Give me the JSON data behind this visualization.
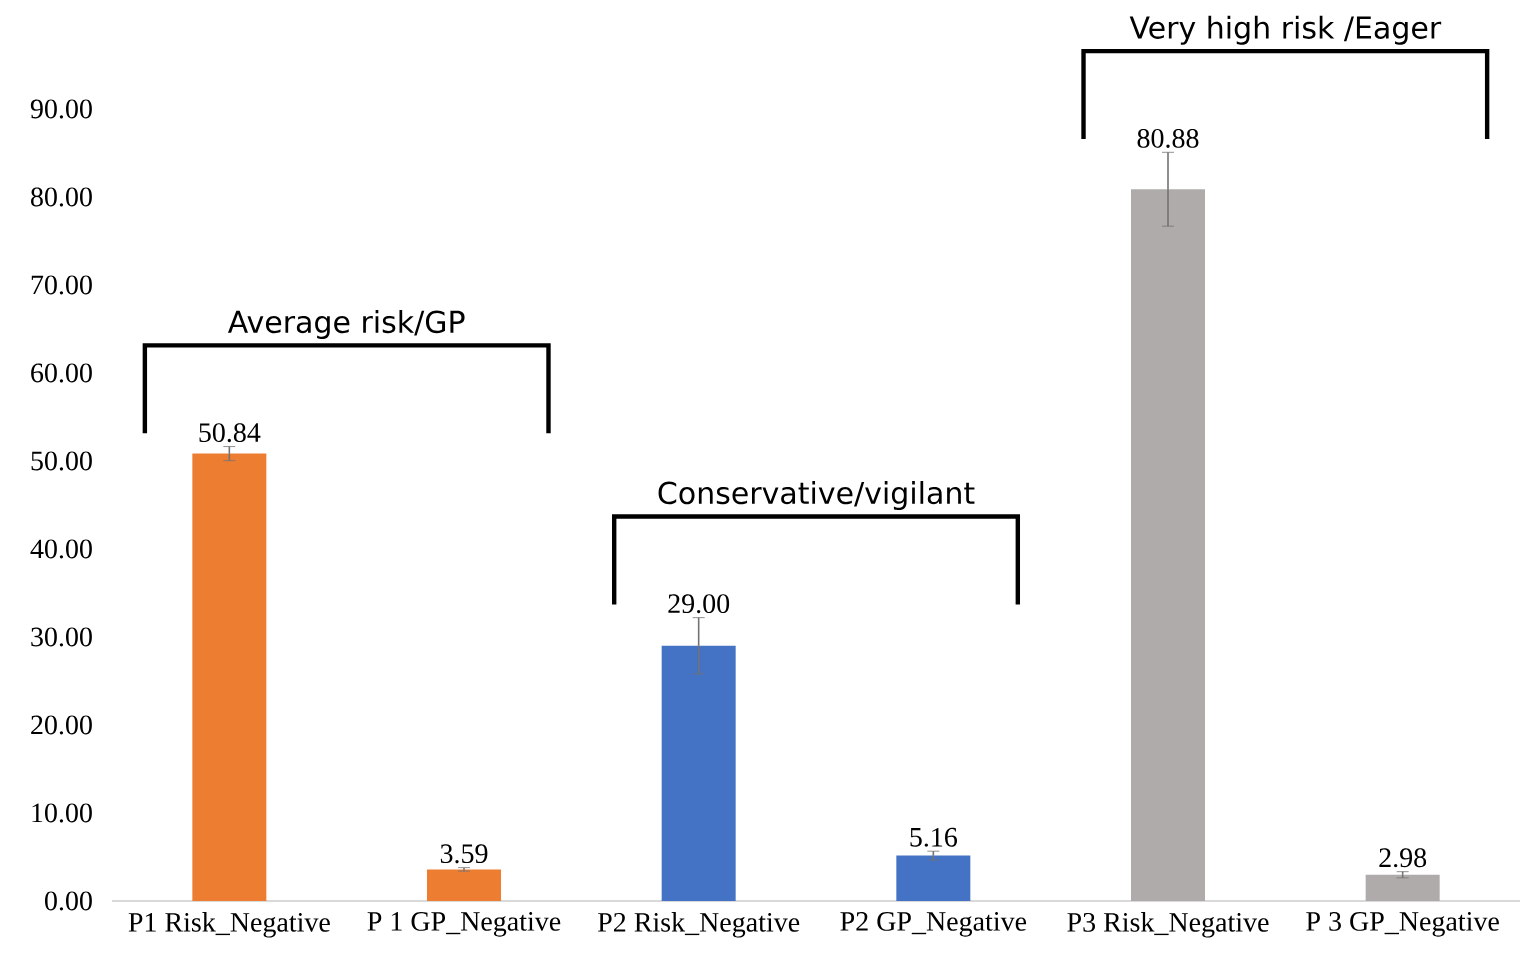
{
  "chart_data": {
    "type": "bar",
    "categories": [
      "P1 Risk_Negative",
      "P 1 GP_Negative",
      "P2 Risk_Negative",
      "P2 GP_Negative",
      "P3 Risk_Negative",
      "P 3 GP_Negative"
    ],
    "values": [
      50.84,
      3.59,
      29.0,
      5.16,
      80.88,
      2.98
    ],
    "colors": [
      "#ed7d31",
      "#ed7d31",
      "#4472c4",
      "#4472c4",
      "#afabab",
      "#afabab"
    ],
    "errors": [
      0.8,
      0.2,
      3.2,
      0.5,
      4.2,
      0.35
    ],
    "value_labels": [
      "50.84",
      "3.59",
      "29.00",
      "5.16",
      "80.88",
      "2.98"
    ],
    "ylim": [
      0,
      90
    ],
    "yticks": [
      {
        "value": 0,
        "label": "0.00"
      },
      {
        "value": 10,
        "label": "10.00"
      },
      {
        "value": 20,
        "label": "20.00"
      },
      {
        "value": 30,
        "label": "30.00"
      },
      {
        "value": 40,
        "label": "40.00"
      },
      {
        "value": 50,
        "label": "50.00"
      },
      {
        "value": 60,
        "label": "60.00"
      },
      {
        "value": 70,
        "label": "70.00"
      },
      {
        "value": 80,
        "label": "80.00"
      },
      {
        "value": 90,
        "label": "90.00"
      }
    ],
    "annotations": [
      "Average risk/GP",
      "Conservative/vigilant",
      "Very high risk /Eager"
    ],
    "grid": false
  }
}
